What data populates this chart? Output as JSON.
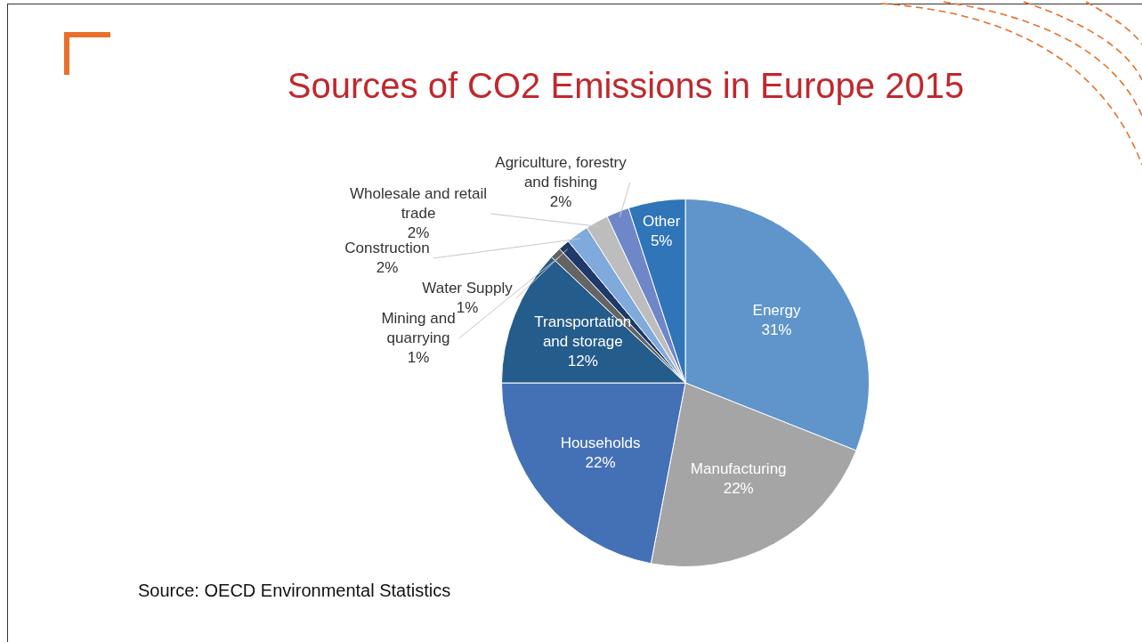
{
  "chart_data": {
    "type": "pie",
    "title": "Sources of CO2 Emissions in Europe 2015",
    "categories": [
      "Energy",
      "Manufacturing",
      "Households",
      "Transportation and storage",
      "Mining and quarrying",
      "Water Supply",
      "Construction",
      "Wholesale and retail trade",
      "Agriculture, forestry and fishing",
      "Other"
    ],
    "values": [
      31,
      22,
      22,
      12,
      1,
      1,
      2,
      2,
      2,
      5
    ],
    "value_labels": [
      "31%",
      "22%",
      "22%",
      "12%",
      "1%",
      "1%",
      "2%",
      "2%",
      "2%",
      "5%"
    ],
    "colors": [
      "#5f95cb",
      "#a5a5a5",
      "#4470b5",
      "#245c8c",
      "#646464",
      "#1f3a68",
      "#7faadb",
      "#bdbdbd",
      "#6f87c9",
      "#2f75b8"
    ],
    "legend": false,
    "annotations": [
      "Source: OECD Environmental Statistics"
    ]
  }
}
